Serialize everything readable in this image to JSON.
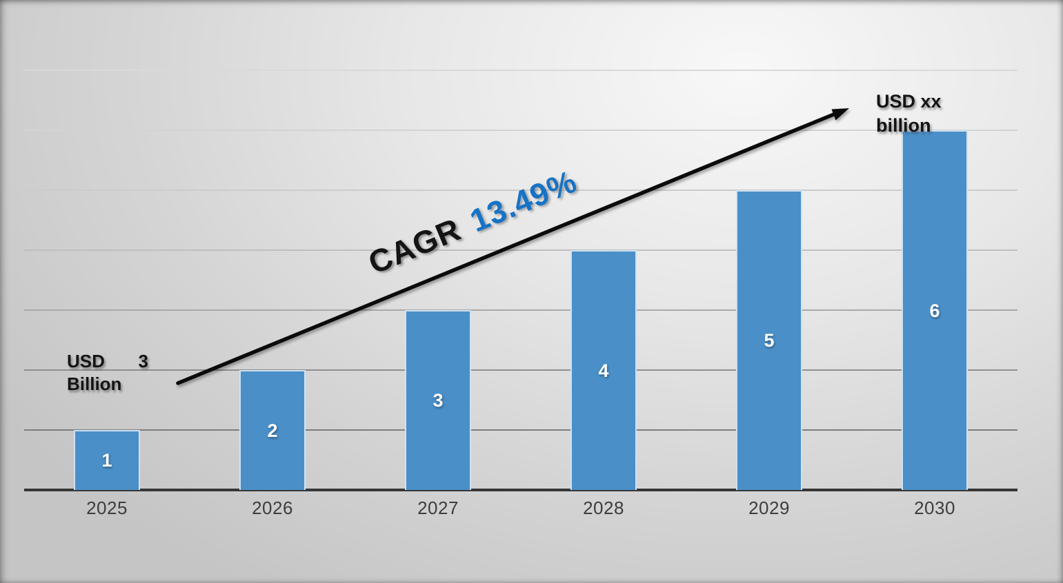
{
  "chart_data": {
    "type": "bar",
    "categories": [
      "2025",
      "2026",
      "2027",
      "2028",
      "2029",
      "2030"
    ],
    "values": [
      1,
      2,
      3,
      4,
      5,
      6
    ],
    "bar_labels": [
      "1",
      "2",
      "3",
      "4",
      "5",
      "6"
    ],
    "title": "",
    "xlabel": "",
    "ylabel": "",
    "ylim": [
      0,
      7
    ],
    "gridline_step": 1,
    "grid": true,
    "legend": "none",
    "annotations": {
      "start_label": "USD 3 Billion",
      "end_label": "USD xx billion",
      "cagr_prefix": "CAGR",
      "cagr_value": "13.49%"
    },
    "colors": {
      "bar_fill": "#4A8FC8",
      "bar_border": "#cfe2f2",
      "bar_value_label": "#ffffff",
      "cagr_value_blue": "#1673C5",
      "annotation_black": "#141414",
      "axis_line": "#363636",
      "tick_label": "#3d3d3d",
      "arrow": "#0b0b0b",
      "background_light": "#f8f8f8",
      "background_dark": "#c5c5c5"
    }
  }
}
